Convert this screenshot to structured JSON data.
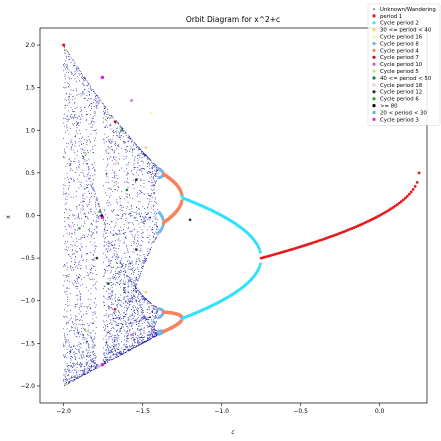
{
  "chart_data": {
    "type": "scatter",
    "title": "Orbit Diagram for x^2+c",
    "xlabel": "c",
    "ylabel": "x",
    "xlim": [
      -2.15,
      0.3
    ],
    "ylim": [
      -2.2,
      2.2
    ],
    "x_ticks": [
      -2.0,
      -1.5,
      -1.0,
      -0.5,
      0.0
    ],
    "x_tick_labels": [
      "−2.0",
      "−1.5",
      "−1.0",
      "−0.5",
      "0.0"
    ],
    "y_ticks": [
      -2.0,
      -1.5,
      -1.0,
      -0.5,
      0.0,
      0.5,
      1.0,
      1.5,
      2.0
    ],
    "y_tick_labels": [
      "−2.0",
      "−1.5",
      "−1.0",
      "−0.5",
      "0.0",
      "0.5",
      "1.0",
      "1.5",
      "2.0"
    ],
    "grid": false,
    "legend_position": "top-right",
    "series": [
      {
        "name": "Unknown/Wandering",
        "color": "#1a1aa0"
      },
      {
        "name": "period 1",
        "color": "#e41a1c"
      },
      {
        "name": "Cycle period 2",
        "color": "#33e0ff"
      },
      {
        "name": "30 <= period < 40",
        "color": "#ffd166"
      },
      {
        "name": "Cycle period 16",
        "color": "#fff3a0"
      },
      {
        "name": "Cycle period 8",
        "color": "#6fb7e8"
      },
      {
        "name": "Cycle period 4",
        "color": "#f4845f"
      },
      {
        "name": "Cycle period 7",
        "color": "#b5121b"
      },
      {
        "name": "Cycle period 10",
        "color": "#cc66cc"
      },
      {
        "name": "Cycle period 5",
        "color": "#c5e86c"
      },
      {
        "name": "40 <= period < 50",
        "color": "#1b7a3a"
      },
      {
        "name": "Cycle period 18",
        "color": "#f7c8d8"
      },
      {
        "name": "Cycle period 12",
        "color": "#2e2e2e"
      },
      {
        "name": "Cycle period 6",
        "color": "#2ca02c"
      },
      {
        "name": ">= 80",
        "color": "#000000"
      },
      {
        "name": "20 < period < 30",
        "color": "#5ab4d6"
      },
      {
        "name": "Cycle period 3",
        "color": "#d62fd6"
      }
    ],
    "period1_range": [
      -0.75,
      0.25
    ],
    "period2_range": [
      -1.25,
      -0.75
    ],
    "period4_range": [
      -1.368,
      -1.25
    ],
    "period8_range": [
      -1.394,
      -1.368
    ],
    "chaos_range": [
      -2.0,
      -1.401
    ],
    "period3_window": [
      -1.79,
      -1.75
    ]
  }
}
